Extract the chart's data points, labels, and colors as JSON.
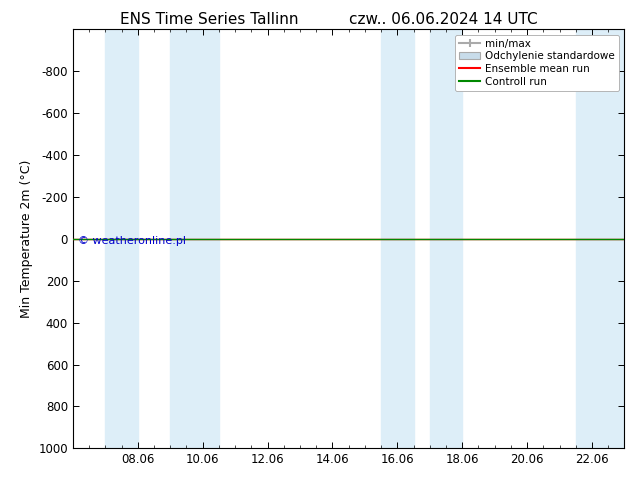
{
  "title_left": "ENS Time Series Tallinn",
  "title_right": "czw.. 06.06.2024 14 UTC",
  "ylabel": "Min Temperature 2m (°C)",
  "ylim_bottom": 1000,
  "ylim_top": -1000,
  "yticks": [
    -800,
    -600,
    -400,
    -200,
    0,
    200,
    400,
    600,
    800,
    1000
  ],
  "xtick_labels": [
    "08.06",
    "10.06",
    "12.06",
    "14.06",
    "16.06",
    "18.06",
    "20.06",
    "22.06"
  ],
  "xtick_positions": [
    2,
    4,
    6,
    8,
    10,
    12,
    14,
    16
  ],
  "xlim_min": 0,
  "xlim_max": 17,
  "blue_bands": [
    [
      1.0,
      2.0
    ],
    [
      3.0,
      4.5
    ],
    [
      9.5,
      10.5
    ],
    [
      11.0,
      12.0
    ],
    [
      15.5,
      17.0
    ]
  ],
  "blue_band_color": "#ddeef8",
  "green_line_color": "#008800",
  "red_line_color": "#ff0000",
  "watermark": "© weatheronline.pl",
  "watermark_color": "#0000cc",
  "background_color": "#ffffff",
  "title_fontsize": 11,
  "axis_fontsize": 9,
  "tick_fontsize": 8.5
}
